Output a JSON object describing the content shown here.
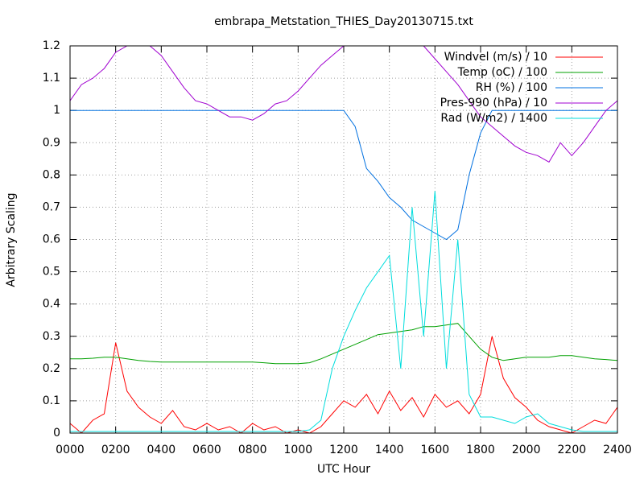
{
  "chart_data": {
    "type": "line",
    "title": "embrapa_Metstation_THIES_Day20130715.txt",
    "x_label": "UTC Hour",
    "y_label": "Arbitrary Scaling",
    "x": [
      0,
      50,
      100,
      150,
      200,
      250,
      300,
      350,
      400,
      450,
      500,
      550,
      600,
      650,
      700,
      750,
      800,
      850,
      900,
      950,
      1000,
      1050,
      1100,
      1150,
      1200,
      1250,
      1300,
      1350,
      1400,
      1450,
      1500,
      1550,
      1600,
      1650,
      1700,
      1750,
      1800,
      1850,
      1900,
      1950,
      2000,
      2050,
      2100,
      2150,
      2200,
      2250,
      2300,
      2350,
      2400
    ],
    "series": [
      {
        "name": "Windvel (m/s) / 10",
        "color": "#ff0000",
        "values": [
          0.03,
          0.0,
          0.04,
          0.06,
          0.28,
          0.13,
          0.08,
          0.05,
          0.03,
          0.07,
          0.02,
          0.01,
          0.03,
          0.01,
          0.02,
          0.0,
          0.03,
          0.01,
          0.02,
          0.0,
          0.01,
          0.0,
          0.02,
          0.06,
          0.1,
          0.08,
          0.12,
          0.06,
          0.13,
          0.07,
          0.11,
          0.05,
          0.12,
          0.08,
          0.1,
          0.06,
          0.12,
          0.3,
          0.17,
          0.11,
          0.08,
          0.04,
          0.02,
          0.01,
          0.0,
          0.02,
          0.04,
          0.03,
          0.08
        ]
      },
      {
        "name": "Temp (oC) / 100",
        "color": "#00a000",
        "values": [
          0.23,
          0.23,
          0.232,
          0.235,
          0.235,
          0.23,
          0.225,
          0.222,
          0.22,
          0.22,
          0.22,
          0.22,
          0.22,
          0.22,
          0.22,
          0.22,
          0.22,
          0.218,
          0.215,
          0.215,
          0.215,
          0.218,
          0.23,
          0.245,
          0.26,
          0.275,
          0.29,
          0.305,
          0.31,
          0.315,
          0.32,
          0.33,
          0.33,
          0.335,
          0.34,
          0.3,
          0.26,
          0.235,
          0.225,
          0.23,
          0.235,
          0.235,
          0.235,
          0.24,
          0.24,
          0.235,
          0.23,
          0.228,
          0.225
        ]
      },
      {
        "name": "RH (%) / 100",
        "color": "#0070e0",
        "values": [
          1,
          1,
          1,
          1,
          1,
          1,
          1,
          1,
          1,
          1,
          1,
          1,
          1,
          1,
          1,
          1,
          1,
          1,
          1,
          1,
          1,
          1,
          1,
          1,
          1,
          0.95,
          0.82,
          0.78,
          0.73,
          0.7,
          0.66,
          0.64,
          0.62,
          0.6,
          0.63,
          0.8,
          0.93,
          1,
          1,
          1,
          1,
          1,
          1,
          1,
          1,
          1,
          1,
          1,
          1
        ]
      },
      {
        "name": "Pres-990 (hPa) / 10",
        "color": "#a000d0",
        "values": [
          1.03,
          1.08,
          1.1,
          1.13,
          1.18,
          1.2,
          1.2,
          1.2,
          1.17,
          1.12,
          1.07,
          1.03,
          1.02,
          1.0,
          0.98,
          0.98,
          0.97,
          0.99,
          1.02,
          1.03,
          1.06,
          1.1,
          1.14,
          1.17,
          1.2,
          1.23,
          1.25,
          1.26,
          1.26,
          1.25,
          1.23,
          1.2,
          1.16,
          1.12,
          1.08,
          1.03,
          0.98,
          0.95,
          0.92,
          0.89,
          0.87,
          0.86,
          0.84,
          0.9,
          0.86,
          0.9,
          0.95,
          1.0,
          1.03
        ]
      },
      {
        "name": "Rad (W/m2) / 1400",
        "color": "#00dddd",
        "values": [
          0.005,
          0.005,
          0.005,
          0.005,
          0.005,
          0.005,
          0.005,
          0.005,
          0.005,
          0.005,
          0.005,
          0.005,
          0.005,
          0.005,
          0.005,
          0.005,
          0.005,
          0.005,
          0.005,
          0.005,
          0.005,
          0.01,
          0.04,
          0.2,
          0.3,
          0.38,
          0.45,
          0.5,
          0.55,
          0.2,
          0.7,
          0.3,
          0.75,
          0.2,
          0.6,
          0.12,
          0.05,
          0.05,
          0.04,
          0.03,
          0.05,
          0.06,
          0.03,
          0.02,
          0.01,
          0.005,
          0.005,
          0.005,
          0.005
        ]
      }
    ],
    "xlim": [
      0,
      2400
    ],
    "xticks": [
      {
        "value": 0,
        "label": "0000"
      },
      {
        "value": 200,
        "label": "0200"
      },
      {
        "value": 400,
        "label": "0400"
      },
      {
        "value": 600,
        "label": "0600"
      },
      {
        "value": 800,
        "label": "0800"
      },
      {
        "value": 1000,
        "label": "1000"
      },
      {
        "value": 1200,
        "label": "1200"
      },
      {
        "value": 1400,
        "label": "1400"
      },
      {
        "value": 1600,
        "label": "1600"
      },
      {
        "value": 1800,
        "label": "1800"
      },
      {
        "value": 2000,
        "label": "2000"
      },
      {
        "value": 2200,
        "label": "2200"
      },
      {
        "value": 2400,
        "label": "2400"
      }
    ],
    "ylim": [
      0,
      1.2
    ],
    "yticks": [
      0,
      0.1,
      0.2,
      0.3,
      0.4,
      0.5,
      0.6,
      0.7,
      0.8,
      0.9,
      1,
      1.1,
      1.2
    ],
    "grid": true,
    "legend": "top-right"
  }
}
